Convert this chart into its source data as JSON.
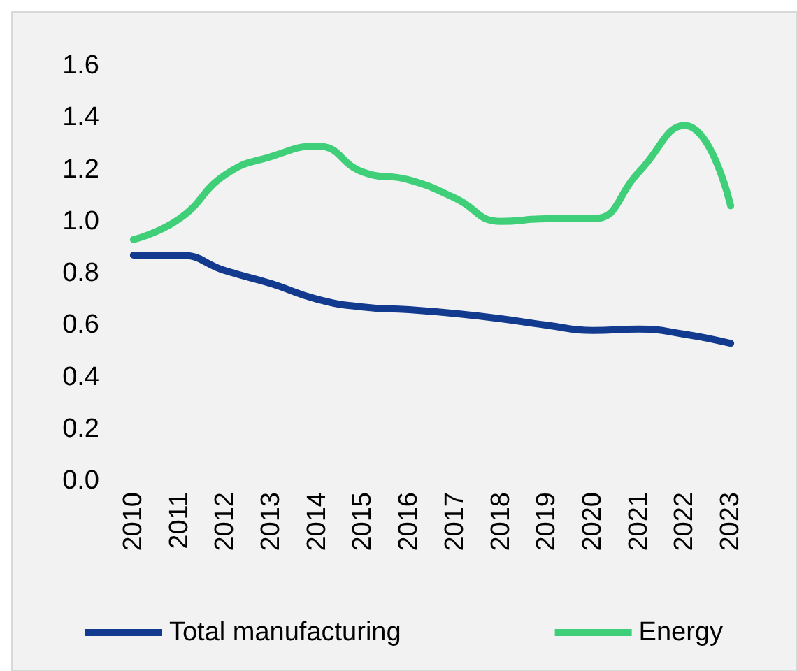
{
  "chart_data": {
    "type": "line",
    "categories": [
      "2010",
      "2011",
      "2012",
      "2013",
      "2014",
      "2015",
      "2016",
      "2017",
      "2018",
      "2019",
      "2020",
      "2021",
      "2022",
      "2023"
    ],
    "series": [
      {
        "name": "Total manufacturing",
        "color": "#123a8e",
        "values": [
          0.87,
          0.87,
          0.81,
          0.76,
          0.7,
          0.67,
          0.66,
          0.645,
          0.625,
          0.6,
          0.58,
          0.585,
          0.565,
          0.53
        ]
      },
      {
        "name": "Energy",
        "color": "#3fcf78",
        "values": [
          0.93,
          1.01,
          1.18,
          1.25,
          1.29,
          1.19,
          1.16,
          1.09,
          1.0,
          1.01,
          1.01,
          1.19,
          1.37,
          1.06
        ]
      }
    ],
    "ylim": [
      0,
      1.6
    ],
    "yticks": [
      {
        "value": 0,
        "label": "0.0"
      },
      0.2,
      0.4,
      0.6,
      0.8,
      {
        "value": 1,
        "label": "1.0"
      },
      1.2,
      1.4,
      1.6
    ],
    "grid": false,
    "legend": "bottom",
    "marker": "none",
    "line_style": "solid"
  }
}
